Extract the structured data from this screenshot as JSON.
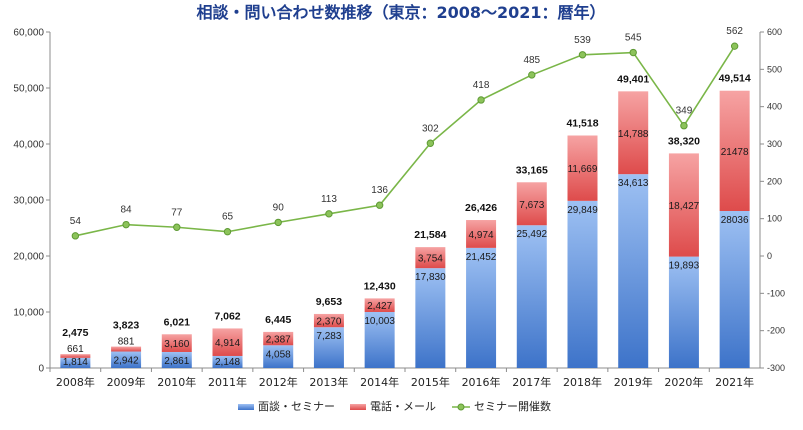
{
  "chart_data": {
    "type": "bar",
    "stacked": true,
    "title": "相談・問い合わせ数推移（東京：2008～2021：暦年）",
    "categories": [
      "2008年",
      "2009年",
      "2010年",
      "2011年",
      "2012年",
      "2013年",
      "2014年",
      "2015年",
      "2016年",
      "2017年",
      "2018年",
      "2019年",
      "2020年",
      "2021年"
    ],
    "series": [
      {
        "name": "面談・セミナー",
        "color": "#4f86d8",
        "values": [
          1814,
          2942,
          2861,
          2148,
          4058,
          7283,
          10003,
          17830,
          21452,
          25492,
          29849,
          34613,
          19893,
          28036
        ],
        "value_labels": [
          "1,814",
          "2,942",
          "2,861",
          "2,148",
          "4,058",
          "7,283",
          "10,003",
          "17,830",
          "21,452",
          "25,492",
          "29,849",
          "34,613",
          "19,893",
          "28036"
        ]
      },
      {
        "name": "電話・メール",
        "color": "#e35a5a",
        "values": [
          661,
          881,
          3160,
          4914,
          2387,
          2370,
          2427,
          3754,
          4974,
          7673,
          11669,
          14788,
          18427,
          21478
        ],
        "value_labels": [
          "661",
          "881",
          "3,160",
          "4,914",
          "2,387",
          "2,370",
          "2,427",
          "3,754",
          "4,974",
          "7,673",
          "11,669",
          "14,788",
          "18,427",
          "21478"
        ]
      },
      {
        "name": "セミナー開催数",
        "type": "line",
        "axis": "right",
        "color": "#7ab648",
        "values": [
          54,
          84,
          77,
          65,
          90,
          113,
          136,
          302,
          418,
          485,
          539,
          545,
          349,
          562
        ],
        "value_labels": [
          "54",
          "84",
          "77",
          "65",
          "90",
          "113",
          "136",
          "302",
          "418",
          "485",
          "539",
          "545",
          "349",
          "562"
        ]
      }
    ],
    "totals": [
      2475,
      3823,
      6021,
      7062,
      6445,
      9653,
      12430,
      21584,
      26426,
      33165,
      41518,
      49401,
      38320,
      49514
    ],
    "total_labels": [
      "2,475",
      "3,823",
      "6,021",
      "7,062",
      "6,445",
      "9,653",
      "12,430",
      "21,584",
      "26,426",
      "33,165",
      "41,518",
      "49,401",
      "38,320",
      "49,514"
    ],
    "ylim_left": [
      0,
      60000
    ],
    "yticks_left": [
      "0",
      "10,000",
      "20,000",
      "30,000",
      "40,000",
      "50,000",
      "60,000"
    ],
    "ylim_right": [
      -300,
      600
    ],
    "yticks_right": [
      "-300",
      "-200",
      "-100",
      "0",
      "100",
      "200",
      "300",
      "400",
      "500",
      "600"
    ],
    "grid": false,
    "legend": "bottom-center"
  }
}
